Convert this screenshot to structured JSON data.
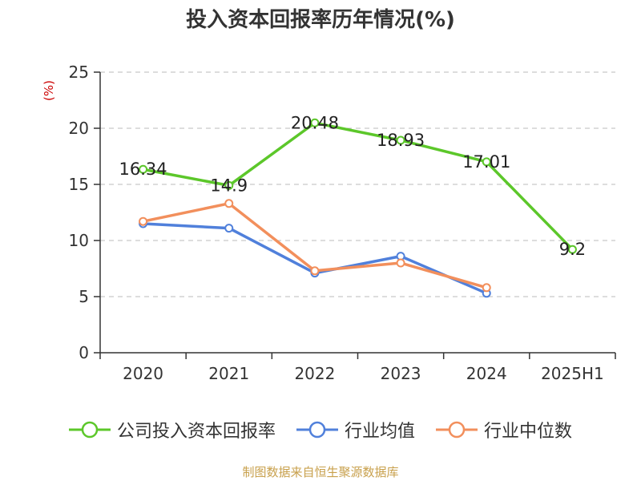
{
  "chart_data": {
    "type": "line",
    "title": "投入资本回报率历年情况(%)",
    "ylabel": "(%)",
    "xlabel": "",
    "categories": [
      "2020",
      "2021",
      "2022",
      "2023",
      "2024",
      "2025H1"
    ],
    "ylim": [
      0,
      25
    ],
    "yticks": [
      0,
      5,
      10,
      15,
      20,
      25
    ],
    "grid": true,
    "legend_position": "bottom",
    "series": [
      {
        "name": "公司投入资本回报率",
        "color": "#5cc72a",
        "values": [
          16.34,
          14.9,
          20.48,
          18.93,
          17.01,
          9.2
        ],
        "labels": [
          "16.34",
          "14.9",
          "20.48",
          "18.93",
          "17.01",
          "9.2"
        ]
      },
      {
        "name": "行业均值",
        "color": "#5080db",
        "values": [
          11.5,
          11.1,
          7.1,
          8.6,
          5.3,
          null
        ]
      },
      {
        "name": "行业中位数",
        "color": "#f28f5c",
        "values": [
          11.7,
          13.3,
          7.3,
          8.0,
          5.8,
          null
        ]
      }
    ]
  },
  "colors": {
    "axis": "#333333",
    "grid": "#bbbbbb",
    "unit_label": "#cc0000",
    "source": "#c8a04c"
  },
  "source": "制图数据来自恒生聚源数据库"
}
